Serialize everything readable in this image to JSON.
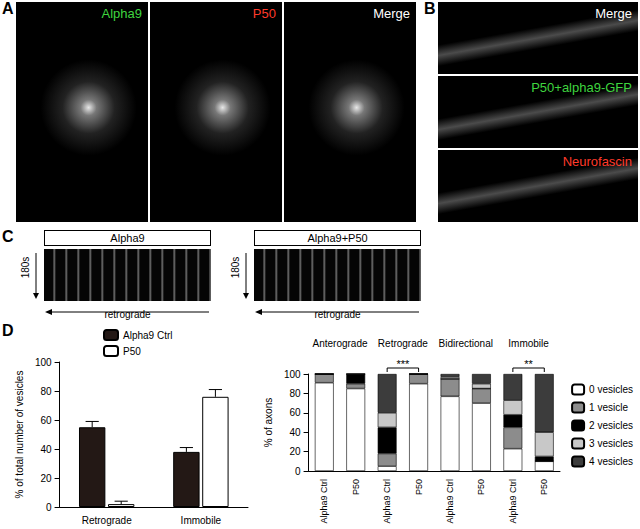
{
  "panels": {
    "A": {
      "letter": "A",
      "images": [
        {
          "label": "Alpha9",
          "color": "#3fd43f"
        },
        {
          "label": "P50",
          "color": "#ff3a2a"
        },
        {
          "label": "Merge",
          "color": "#ffffff"
        }
      ]
    },
    "B": {
      "letter": "B",
      "images": [
        {
          "label": "Merge",
          "color": "#ffffff"
        },
        {
          "label": "P50+alpha9-GFP",
          "color": "#3fd43f"
        },
        {
          "label": "Neurofascin",
          "color": "#ff3a2a"
        }
      ]
    },
    "C": {
      "letter": "C",
      "kymographs": [
        {
          "title": "Alpha9",
          "time": "180s",
          "direction": "retrograde"
        },
        {
          "title": "Alpha9+P50",
          "time": "180s",
          "direction": "retrograde"
        }
      ]
    },
    "D": {
      "letter": "D"
    }
  },
  "chart_data": [
    {
      "type": "bar",
      "categories": [
        "Retrograde",
        "Immobile"
      ],
      "series": [
        {
          "name": "Alpha9 Ctrl",
          "color": "#231815",
          "values": [
            55,
            38
          ],
          "errors": [
            4,
            3
          ]
        },
        {
          "name": "P50",
          "color": "#ffffff",
          "values": [
            2,
            76
          ],
          "errors": [
            2,
            5
          ]
        }
      ],
      "ylabel": "% of total number of vesicles",
      "ylim": [
        0,
        100
      ],
      "yticks": [
        0,
        20,
        40,
        60,
        80,
        100
      ],
      "legend": "top"
    },
    {
      "type": "bar",
      "stacked": true,
      "groups": [
        "Anterograde",
        "Retrograde",
        "Bidirectional",
        "Immobile"
      ],
      "categories": [
        "Alpha9 Ctrl",
        "P50",
        "Alpha9 Ctrl",
        "P50",
        "Alpha9 Ctrl",
        "P50",
        "Alpha9 Ctrl",
        "P50"
      ],
      "series": [
        {
          "name": "0 vesicles",
          "color": "#ffffff",
          "values": [
            91,
            85,
            5,
            90,
            77,
            70,
            23,
            10
          ]
        },
        {
          "name": "1 vesicle",
          "color": "#8c8c8c",
          "values": [
            9,
            5,
            13,
            10,
            18,
            15,
            22,
            0
          ]
        },
        {
          "name": "2 vesicles",
          "color": "#000000",
          "values": [
            0,
            10,
            27,
            0,
            0,
            0,
            13,
            5
          ]
        },
        {
          "name": "3 vesicles",
          "color": "#c8c8c8",
          "values": [
            0,
            0,
            15,
            0,
            2,
            5,
            15,
            25
          ]
        },
        {
          "name": "4 vesicles",
          "color": "#3c3c3c",
          "values": [
            0,
            0,
            40,
            0,
            3,
            10,
            27,
            60
          ]
        }
      ],
      "ylabel": "% of axons",
      "ylim": [
        0,
        100
      ],
      "yticks": [
        0,
        20,
        40,
        60,
        80,
        100
      ],
      "legend": "right",
      "annotations": [
        {
          "group": "Retrograde",
          "text": "***"
        },
        {
          "group": "Immobile",
          "text": "**"
        }
      ]
    }
  ]
}
